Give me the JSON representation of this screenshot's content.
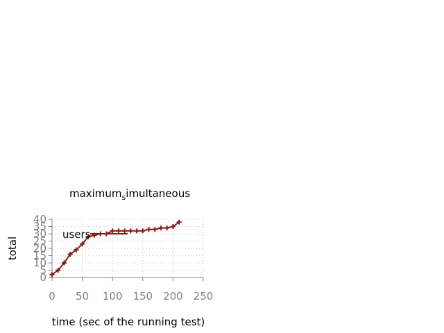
{
  "chart_data": {
    "type": "line",
    "title": "maximum",
    "title_subscript": "s",
    "title_rest": "imultaneous",
    "xlabel": "time (sec of the running test)",
    "ylabel": "total",
    "xlim": [
      0,
      250
    ],
    "ylim": [
      0,
      40
    ],
    "xticks": [
      "0",
      "50",
      "100",
      "150",
      "200",
      "250"
    ],
    "yticks": [
      "0",
      "5",
      "10",
      "15",
      "20",
      "25",
      "30",
      "35",
      "40"
    ],
    "grid": true,
    "legend_position": "top-left",
    "series": [
      {
        "name": "users",
        "color": "#8b1a1a",
        "marker": "plus",
        "x": [
          0,
          10,
          20,
          30,
          40,
          50,
          60,
          70,
          80,
          90,
          100,
          110,
          120,
          130,
          140,
          150,
          160,
          170,
          180,
          190,
          200,
          210
        ],
        "y": [
          2,
          5,
          10,
          16,
          19,
          23,
          28,
          29,
          30,
          30,
          32,
          32,
          32,
          32,
          32,
          32,
          33,
          33,
          34,
          34,
          35,
          38
        ]
      }
    ]
  }
}
